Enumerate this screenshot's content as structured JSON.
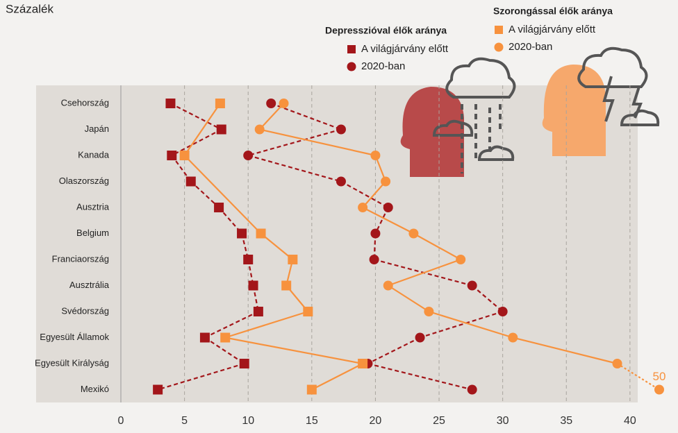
{
  "chart_data": {
    "type": "dot-line",
    "unit": "Százalék",
    "legend_titles": [
      "Depresszióval élők aránya",
      "Szorongással élők aránya"
    ],
    "categories": [
      "Csehország",
      "Japán",
      "Kanada",
      "Olaszország",
      "Ausztria",
      "Belgium",
      "Franciaország",
      "Ausztrália",
      "Svédország",
      "Egyesült Államok",
      "Egyesült Királyság",
      "Mexikó"
    ],
    "series": [
      {
        "name": "A világjárvány előtt",
        "color": "#a3161a",
        "marker": "square",
        "dashed": true,
        "values": [
          3.9,
          7.9,
          4.0,
          5.5,
          7.7,
          9.5,
          10.0,
          10.4,
          10.8,
          6.6,
          9.7,
          2.9
        ]
      },
      {
        "name": "2020-ban",
        "color": "#a3161a",
        "marker": "circle",
        "dashed": true,
        "values": [
          11.8,
          17.3,
          10.0,
          17.3,
          21.0,
          20.0,
          19.9,
          27.6,
          30.0,
          23.5,
          19.4,
          27.6
        ]
      },
      {
        "name": "A világjárvány előtt",
        "color": "#f7923e",
        "marker": "square",
        "dashed": false,
        "values": [
          7.8,
          null,
          5.0,
          null,
          null,
          11.0,
          13.5,
          13.0,
          14.7,
          8.2,
          19.0,
          15.0
        ]
      },
      {
        "name": "2020-ban",
        "color": "#f7923e",
        "marker": "circle",
        "dashed": false,
        "values": [
          12.8,
          10.9,
          20.0,
          20.8,
          19.0,
          23.0,
          26.7,
          21.0,
          24.2,
          30.8,
          39.0,
          50
        ],
        "value_labels": [
          null,
          null,
          null,
          null,
          null,
          null,
          null,
          null,
          null,
          null,
          null,
          "50"
        ]
      }
    ],
    "xlim": [
      0,
      42.3
    ],
    "xticks": [
      0,
      5,
      10,
      15,
      20,
      25,
      30,
      35,
      40
    ],
    "grid": true
  }
}
